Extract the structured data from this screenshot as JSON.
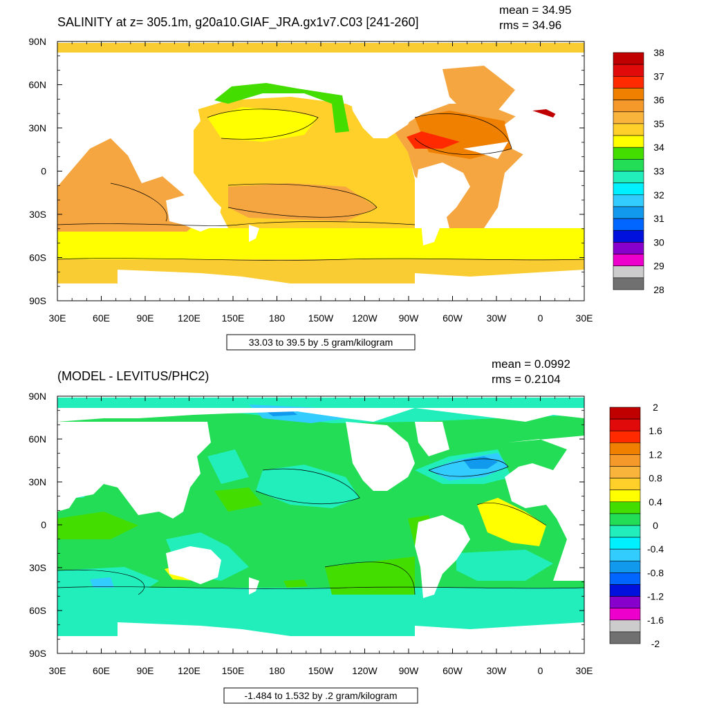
{
  "chart_data": [
    {
      "type": "heatmap",
      "title": "SALINITY at z= 305.1m, g20a10.GIAF_JRA.gx1v7.C03 [241-260]",
      "mean_text": "mean = 34.95",
      "rms_text": "rms = 34.96",
      "mean": 34.95,
      "rms": 34.96,
      "xlabel": "33.03 to 39.5 by .5 gram/kilogram",
      "x_ticks": [
        "30E",
        "60E",
        "90E",
        "120E",
        "150E",
        "180",
        "150W",
        "120W",
        "90W",
        "60W",
        "30W",
        "0",
        "30E"
      ],
      "y_ticks": [
        "90N",
        "60N",
        "30N",
        "0",
        "30S",
        "60S",
        "90S"
      ],
      "xlim": [
        30,
        390
      ],
      "ylim": [
        -90,
        90
      ],
      "colorbar": {
        "labels": [
          "38",
          "37",
          "36",
          "35",
          "34",
          "33",
          "32",
          "31",
          "30",
          "29",
          "28"
        ],
        "colors": [
          "#c00000",
          "#e00a0a",
          "#ff2a00",
          "#f08000",
          "#f59a2a",
          "#f9b43c",
          "#ffd02a",
          "#ffff00",
          "#44dd00",
          "#22dd55",
          "#22eebb",
          "#00f0ff",
          "#33ccff",
          "#1199ee",
          "#0066ff",
          "#0011dd",
          "#8800cc",
          "#ee00cc",
          "#cccccc",
          "#707070"
        ]
      },
      "description": "Global ocean map; salinity ~34.5-35.0 over most oceans, higher (35.5-36.5) in the North Atlantic and subtropics, maxima near 37-38 in the Gulf of Mexico/Caribbean and Mediterranean, lower (~34) in the North Pacific subarctic."
    },
    {
      "type": "heatmap",
      "title": "(MODEL - LEVITUS/PHC2)",
      "mean_text": "mean = 0.0992",
      "rms_text": "rms = 0.2104",
      "mean": 0.0992,
      "rms": 0.2104,
      "xlabel": "-1.484 to 1.532 by .2 gram/kilogram",
      "x_ticks": [
        "30E",
        "60E",
        "90E",
        "120E",
        "150E",
        "180",
        "150W",
        "120W",
        "90W",
        "60W",
        "30W",
        "0",
        "30E"
      ],
      "y_ticks": [
        "90N",
        "60N",
        "30N",
        "0",
        "30S",
        "60S",
        "90S"
      ],
      "xlim": [
        30,
        390
      ],
      "ylim": [
        -90,
        90
      ],
      "colorbar": {
        "labels": [
          "2",
          "1.6",
          "1.2",
          "0.8",
          "0.4",
          "0",
          "-0.4",
          "-0.8",
          "-1.2",
          "-1.6",
          "-2"
        ],
        "colors": [
          "#c00000",
          "#e00a0a",
          "#ff2a00",
          "#f08000",
          "#f59a2a",
          "#f9b43c",
          "#ffd02a",
          "#ffff00",
          "#44dd00",
          "#22dd55",
          "#22eebb",
          "#00f0ff",
          "#33ccff",
          "#1199ee",
          "#0066ff",
          "#0011dd",
          "#8800cc",
          "#ee00cc",
          "#cccccc",
          "#707070"
        ]
      },
      "description": "Model minus climatology salinity difference; mostly 0 to 0.2 (green) with negative patches (cyan) in the Southern Ocean, North Pacific and North Atlantic; positive 0.4-0.6 (yellow) in the tropical South Atlantic, off Australia and in the South Pacific."
    }
  ]
}
